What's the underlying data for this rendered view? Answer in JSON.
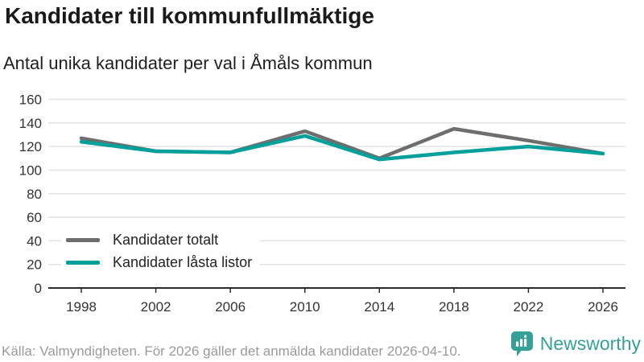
{
  "header": {
    "title": "Kandidater till kommunfullmäktige",
    "subtitle": "Antal unika kandidater per val i Åmåls kommun"
  },
  "chart_data": {
    "type": "line",
    "title": "Kandidater till kommunfullmäktige",
    "subtitle": "Antal unika kandidater per val i Åmåls kommun",
    "categories": [
      "1998",
      "2002",
      "2006",
      "2010",
      "2014",
      "2018",
      "2022",
      "2026"
    ],
    "series": [
      {
        "name": "Kandidater totalt",
        "color": "#6e6e6e",
        "values": [
          127,
          116,
          115,
          133,
          110,
          135,
          125,
          114
        ]
      },
      {
        "name": "Kandidater låsta listor",
        "color": "#00a09a",
        "values": [
          124,
          116,
          115,
          129,
          109,
          115,
          120,
          114
        ]
      }
    ],
    "xlabel": "",
    "ylabel": "",
    "ylim": [
      0,
      160
    ],
    "ytick_step": 20,
    "grid": true,
    "legend_position": "inside-bottom-left"
  },
  "footer": {
    "source": "Källa: Valmyndigheten. För 2026 gäller det anmälda kandidater 2026-04-10.",
    "brand": "Newsworthy",
    "brand_color": "#35a095"
  },
  "colors": {
    "grid": "#e3e3e3",
    "axis": "#2b2b2b",
    "tick_label": "#333333"
  }
}
